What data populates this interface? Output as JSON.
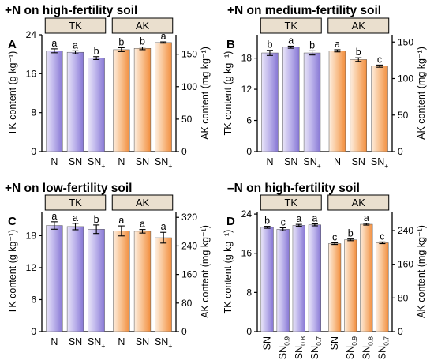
{
  "panels": [
    {
      "letter": "A",
      "title": "+N on high-fertility soil",
      "group_labels": [
        "TK",
        "AK"
      ],
      "left_axis_label": "TK content (g kg⁻¹)",
      "right_axis_label": "AK content (mg kg⁻¹)"
    },
    {
      "letter": "B",
      "title": "+N on medium-fertility soil",
      "group_labels": [
        "TK",
        "AK"
      ],
      "left_axis_label": "TK content (g kg⁻¹)",
      "right_axis_label": "AK content (mg kg⁻¹)"
    },
    {
      "letter": "C",
      "title": "+N on low-fertility soil",
      "group_labels": [
        "TK",
        "AK"
      ],
      "left_axis_label": "TK content (g kg⁻¹)",
      "right_axis_label": "AK content (mg kg⁻¹)"
    },
    {
      "letter": "D",
      "title": "–N on high-fertility soil",
      "group_labels": [
        "TK",
        "AK"
      ],
      "left_axis_label": "TK content (g kg⁻¹)",
      "right_axis_label": "AK content (mg kg⁻¹)"
    }
  ],
  "chart_data": [
    {
      "type": "bar",
      "panel": "A",
      "title": "+N on high-fertility soil",
      "left_axis": {
        "label": "TK content (g kg⁻¹)",
        "ylim": [
          0,
          24
        ],
        "ticks": [
          0,
          8,
          16,
          24
        ]
      },
      "right_axis": {
        "label": "AK content (mg kg⁻¹)",
        "ylim": [
          0,
          180
        ],
        "ticks": [
          0,
          50,
          100,
          150
        ]
      },
      "categories": [
        {
          "main": "N",
          "sub": ""
        },
        {
          "main": "SN",
          "sub": ""
        },
        {
          "main": "SN",
          "sub": "+"
        }
      ],
      "series": [
        {
          "name": "TK",
          "axis": "left",
          "color": "#8f82d6",
          "values": [
            20.7,
            20.4,
            19.2
          ],
          "errors": [
            0.4,
            0.3,
            0.3
          ],
          "letters": [
            "a",
            "a",
            "b"
          ]
        },
        {
          "name": "AK",
          "axis": "right",
          "color": "#f39a4f",
          "values": [
            157,
            159,
            168
          ],
          "errors": [
            3,
            2,
            1
          ],
          "letters": [
            "b",
            "b",
            "a"
          ]
        }
      ]
    },
    {
      "type": "bar",
      "panel": "B",
      "title": "+N on medium-fertility soil",
      "left_axis": {
        "label": "TK content (g kg⁻¹)",
        "ylim": [
          0,
          22.5
        ],
        "ticks": [
          0,
          6,
          12,
          18
        ]
      },
      "right_axis": {
        "label": "AK content (mg kg⁻¹)",
        "ylim": [
          0,
          160
        ],
        "ticks": [
          0,
          50,
          100,
          150
        ]
      },
      "categories": [
        {
          "main": "N",
          "sub": ""
        },
        {
          "main": "SN",
          "sub": ""
        },
        {
          "main": "SN",
          "sub": "+"
        }
      ],
      "series": [
        {
          "name": "TK",
          "axis": "left",
          "color": "#8f82d6",
          "values": [
            19.0,
            20.1,
            19.0
          ],
          "errors": [
            0.5,
            0.2,
            0.4
          ],
          "letters": [
            "b",
            "a",
            "b"
          ]
        },
        {
          "name": "AK",
          "axis": "right",
          "color": "#f39a4f",
          "values": [
            138,
            126,
            117
          ],
          "errors": [
            1.5,
            2.5,
            1.5
          ],
          "letters": [
            "a",
            "b",
            "c"
          ]
        }
      ]
    },
    {
      "type": "bar",
      "panel": "C",
      "title": "+N on low-fertility soil",
      "left_axis": {
        "label": "TK content (g kg⁻¹)",
        "ylim": [
          0,
          22.5
        ],
        "ticks": [
          0,
          6,
          12,
          18
        ]
      },
      "right_axis": {
        "label": "AK content (mg kg⁻¹)",
        "ylim": [
          0,
          336
        ],
        "ticks": [
          0,
          80,
          160,
          240,
          320
        ]
      },
      "categories": [
        {
          "main": "N",
          "sub": ""
        },
        {
          "main": "SN",
          "sub": ""
        },
        {
          "main": "SN",
          "sub": "+"
        }
      ],
      "series": [
        {
          "name": "TK",
          "axis": "left",
          "color": "#8f82d6",
          "values": [
            19.9,
            19.7,
            19.2
          ],
          "errors": [
            0.7,
            0.6,
            0.8
          ],
          "letters": [
            "a",
            "a",
            "b"
          ]
        },
        {
          "name": "AK",
          "axis": "right",
          "color": "#f39a4f",
          "values": [
            282,
            281,
            263
          ],
          "errors": [
            14,
            5,
            15
          ],
          "letters": [
            "a",
            "a",
            "a"
          ]
        }
      ]
    },
    {
      "type": "bar",
      "panel": "D",
      "title": "–N on high-fertility soil",
      "left_axis": {
        "label": "TK content (g kg⁻¹)",
        "ylim": [
          0,
          24.5
        ],
        "ticks": [
          0,
          8,
          16,
          24
        ]
      },
      "right_axis": {
        "label": "AK content (mg kg⁻¹)",
        "ylim": [
          0,
          285
        ],
        "ticks": [
          0,
          80,
          160,
          240
        ]
      },
      "categories": [
        {
          "main": "SN",
          "sub": ""
        },
        {
          "main": "SN",
          "sub": "0.9"
        },
        {
          "main": "SN",
          "sub": "0.8"
        },
        {
          "main": "SN",
          "sub": "0.7"
        }
      ],
      "series": [
        {
          "name": "TK",
          "axis": "left",
          "color": "#8f82d6",
          "values": [
            21.3,
            20.9,
            21.7,
            21.8
          ],
          "errors": [
            0.2,
            0.3,
            0.2,
            0.2
          ],
          "letters": [
            "b",
            "c",
            "a",
            "a"
          ]
        },
        {
          "name": "AK",
          "axis": "right",
          "color": "#f39a4f",
          "values": [
            209,
            218,
            255,
            211
          ],
          "errors": [
            2,
            2,
            2,
            2
          ],
          "letters": [
            "c",
            "b",
            "a",
            "c"
          ]
        }
      ]
    }
  ]
}
